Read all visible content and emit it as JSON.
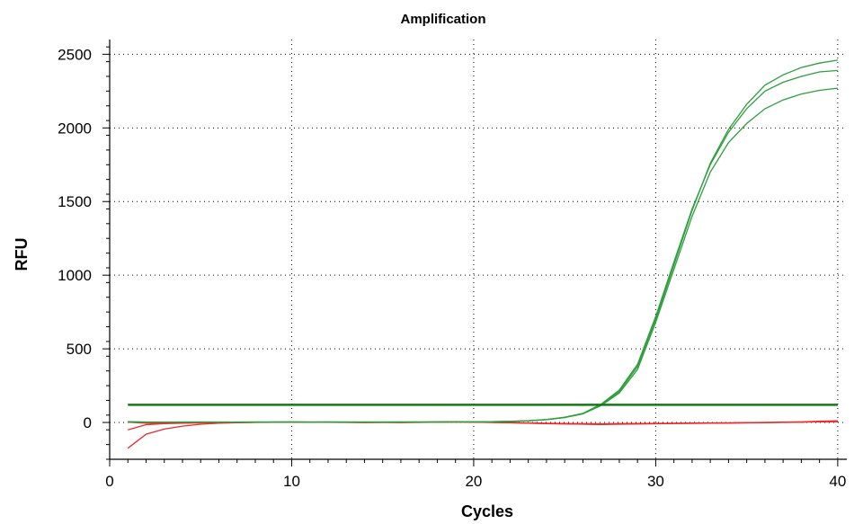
{
  "chart_data": {
    "type": "line",
    "title": "Amplification",
    "xlabel": "Cycles",
    "ylabel": "RFU",
    "xlim": [
      0,
      40.5
    ],
    "ylim": [
      -250,
      2600
    ],
    "xticks": [
      0,
      10,
      20,
      30,
      40
    ],
    "yticks": [
      0,
      500,
      1000,
      1500,
      2000,
      2500
    ],
    "grid": true,
    "colors": {
      "positive": "#2e9e3e",
      "negative": "#ee2a2a",
      "threshold": "#137a13"
    },
    "threshold": {
      "y": 120,
      "x_range": [
        1,
        40
      ]
    },
    "x": [
      1,
      2,
      3,
      4,
      5,
      6,
      7,
      8,
      9,
      10,
      11,
      12,
      13,
      14,
      15,
      16,
      17,
      18,
      19,
      20,
      21,
      22,
      23,
      24,
      25,
      26,
      27,
      28,
      29,
      30,
      31,
      32,
      33,
      34,
      35,
      36,
      37,
      38,
      39,
      40
    ],
    "series": [
      {
        "color_key": "positive",
        "values": [
          5,
          3,
          2,
          2,
          3,
          2,
          2,
          3,
          3,
          3,
          2,
          3,
          3,
          2,
          3,
          3,
          3,
          2,
          3,
          4,
          5,
          8,
          12,
          20,
          35,
          60,
          120,
          210,
          380,
          700,
          1070,
          1440,
          1760,
          1990,
          2160,
          2290,
          2360,
          2410,
          2440,
          2460
        ]
      },
      {
        "color_key": "positive",
        "values": [
          3,
          2,
          2,
          3,
          2,
          2,
          3,
          2,
          3,
          2,
          3,
          2,
          3,
          3,
          2,
          3,
          3,
          3,
          3,
          4,
          5,
          7,
          12,
          20,
          35,
          62,
          125,
          220,
          395,
          720,
          1090,
          1450,
          1750,
          1970,
          2130,
          2250,
          2310,
          2350,
          2380,
          2390
        ]
      },
      {
        "color_key": "positive",
        "values": [
          4,
          2,
          2,
          2,
          3,
          3,
          2,
          3,
          2,
          3,
          2,
          3,
          2,
          3,
          3,
          3,
          2,
          3,
          3,
          4,
          5,
          7,
          11,
          19,
          33,
          58,
          115,
          200,
          360,
          680,
          1040,
          1400,
          1700,
          1900,
          2030,
          2130,
          2190,
          2230,
          2255,
          2270
        ]
      },
      {
        "color_key": "negative",
        "values": [
          -50,
          -15,
          -8,
          -5,
          -3,
          -2,
          0,
          1,
          1,
          2,
          2,
          3,
          2,
          1,
          0,
          -1,
          0,
          2,
          4,
          2,
          0,
          -2,
          -5,
          -8,
          -10,
          -11,
          -12,
          -10,
          -9,
          -8,
          -6,
          -6,
          -5,
          -4,
          -3,
          -2,
          0,
          2,
          5,
          8
        ]
      },
      {
        "color_key": "negative",
        "values": [
          -175,
          -80,
          -45,
          -25,
          -12,
          -5,
          -2,
          1,
          3,
          4,
          3,
          2,
          1,
          0,
          1,
          2,
          3,
          4,
          5,
          3,
          1,
          -2,
          -4,
          -7,
          -9,
          -12,
          -14,
          -12,
          -10,
          -9,
          -7,
          -6,
          -5,
          -4,
          -2,
          0,
          2,
          4,
          8,
          12
        ]
      },
      {
        "color_key": "negative",
        "values": [
          2,
          -5,
          -5,
          -4,
          -3,
          -2,
          -1,
          0,
          1,
          2,
          2,
          1,
          0,
          -1,
          0,
          1,
          2,
          3,
          3,
          2,
          0,
          -1,
          -3,
          -5,
          -7,
          -8,
          -9,
          -8,
          -7,
          -6,
          -5,
          -4,
          -3,
          -2,
          -1,
          0,
          1,
          3,
          4,
          5
        ]
      }
    ]
  }
}
